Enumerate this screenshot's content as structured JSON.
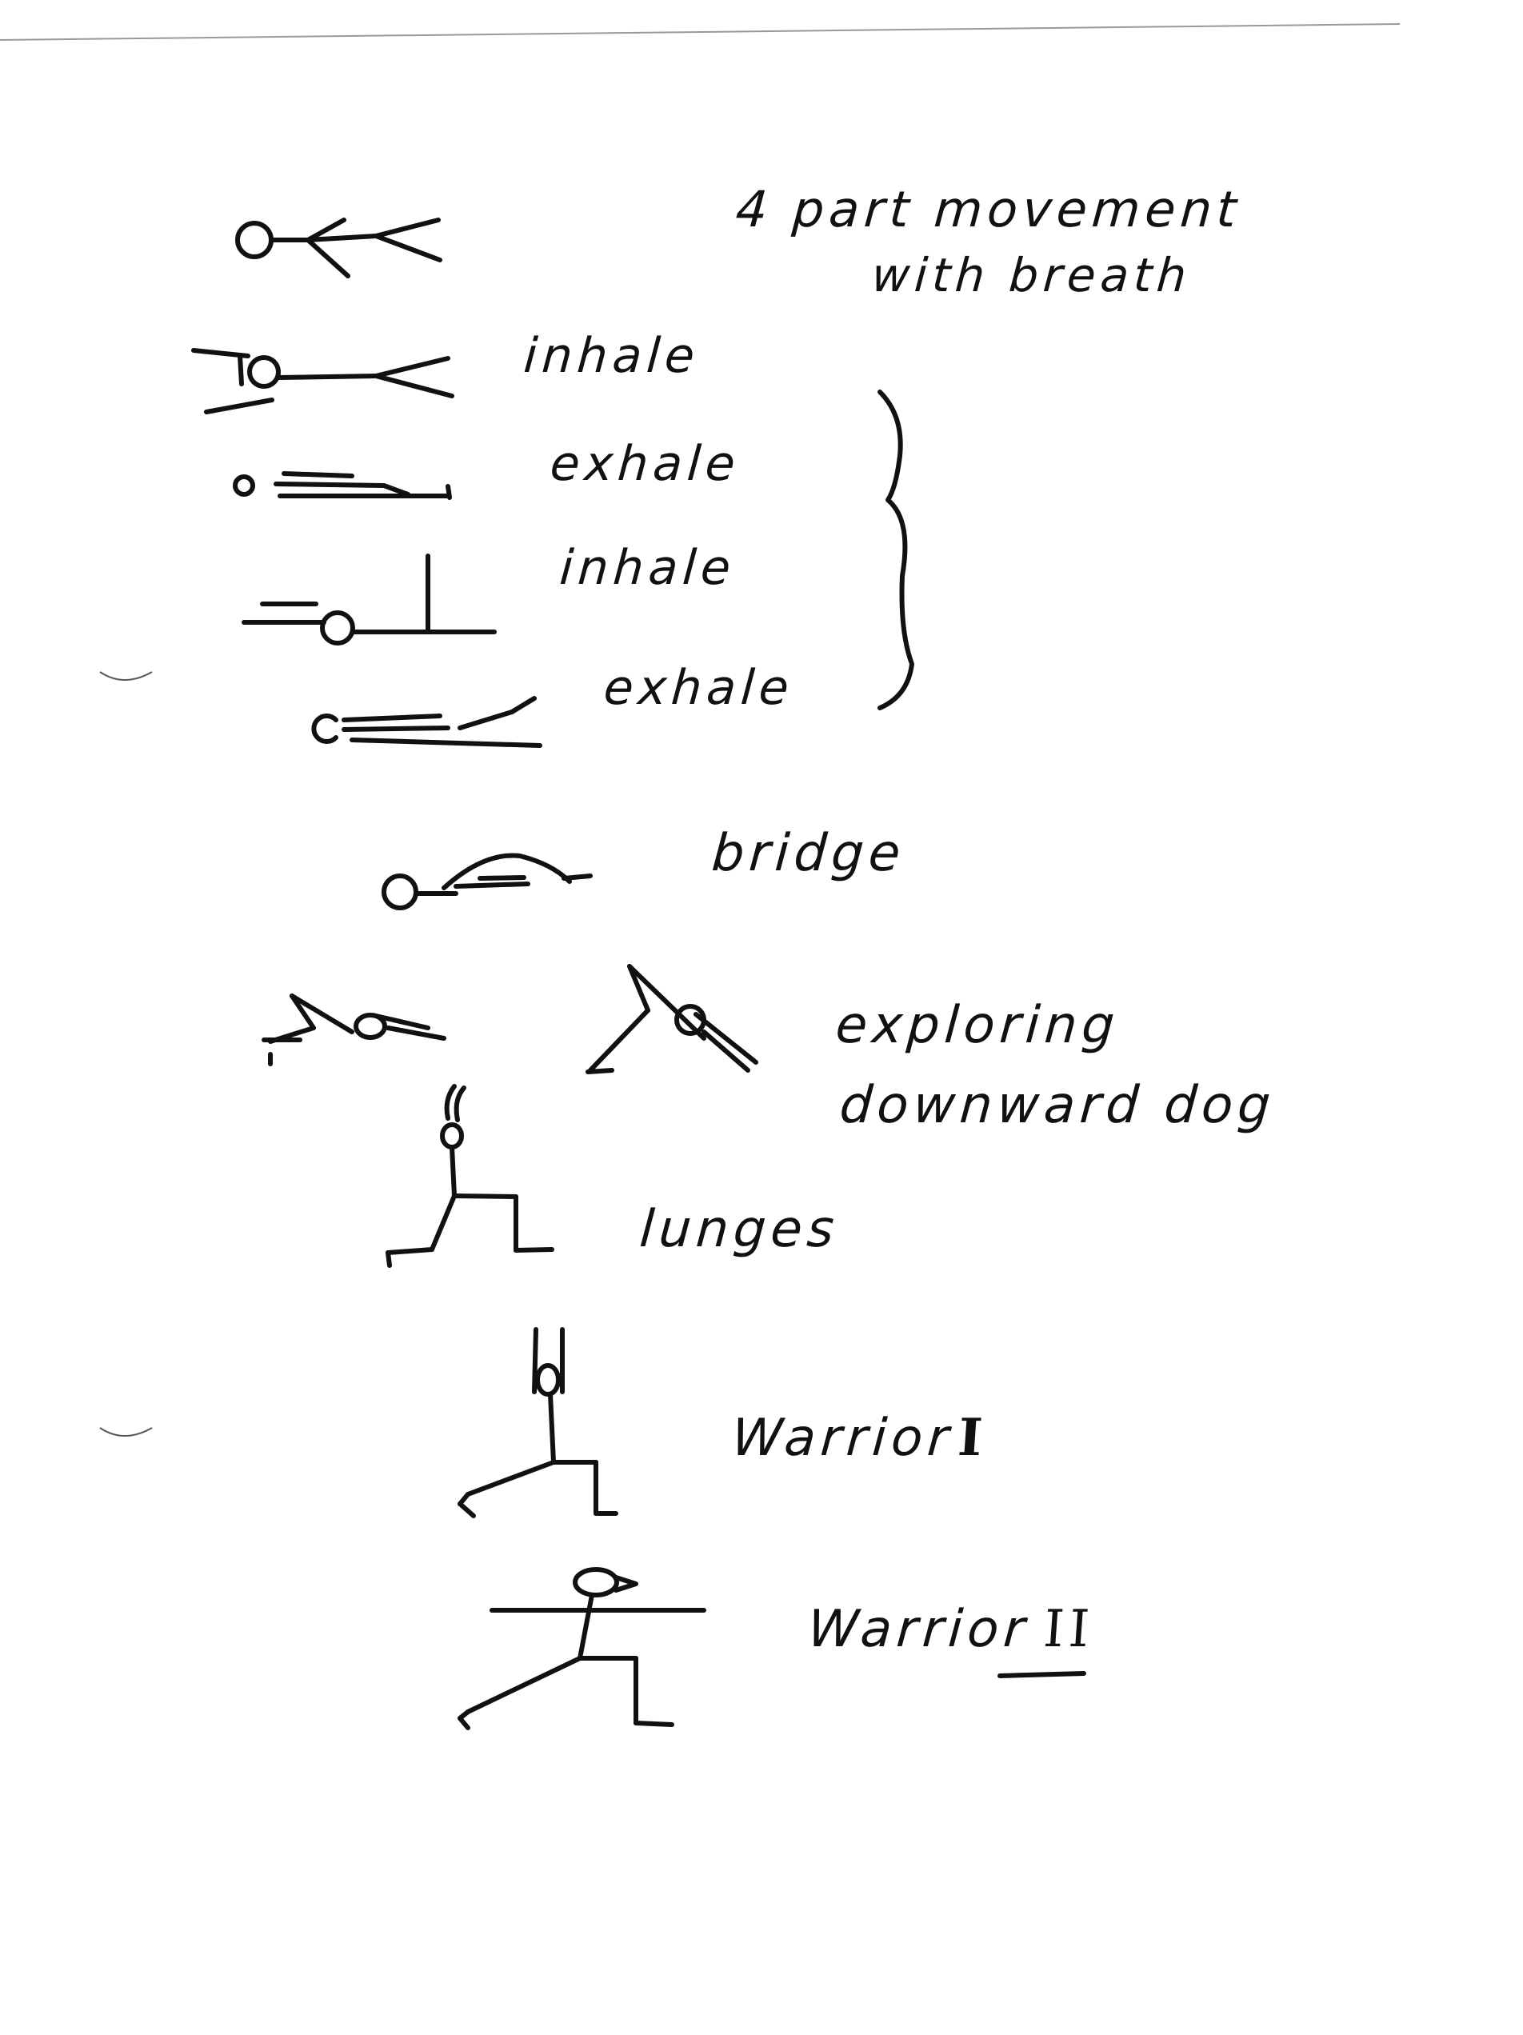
{
  "title": {
    "line1": "4 part movement",
    "line2": "with breath"
  },
  "breath_sequence": [
    {
      "label": "inhale"
    },
    {
      "label": "exhale"
    },
    {
      "label": "inhale"
    },
    {
      "label": "exhale"
    }
  ],
  "poses": {
    "bridge": "bridge",
    "downward_dog_line1": "exploring",
    "downward_dog_line2": "downward dog",
    "lunges": "lunges",
    "warrior_1_label": "Warrior",
    "warrior_1_numeral": "I",
    "warrior_2_label": "Warrior",
    "warrior_2_numeral": "II"
  },
  "colors": {
    "ink": "#111111",
    "paper": "#ffffff"
  }
}
